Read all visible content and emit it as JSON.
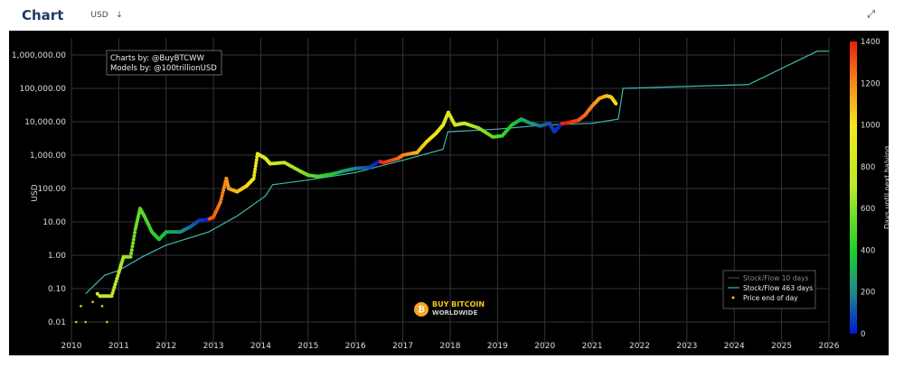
{
  "header": {
    "title": "Chart",
    "currency": "USD",
    "currency_arrow": "↓",
    "expand_icon": "expand-icon"
  },
  "chart_data": {
    "type": "scatter",
    "ylabel": "USD",
    "y_scale": "log",
    "ylim": [
      0.005,
      2000000
    ],
    "xlim": [
      2010,
      2026
    ],
    "y_ticks": [
      {
        "v": 0.01,
        "l": "0.01"
      },
      {
        "v": 0.1,
        "l": "0.10"
      },
      {
        "v": 1,
        "l": "1.00"
      },
      {
        "v": 10,
        "l": "10.00"
      },
      {
        "v": 100,
        "l": "100.00"
      },
      {
        "v": 1000,
        "l": "1,000.00"
      },
      {
        "v": 10000,
        "l": "10,000.00"
      },
      {
        "v": 100000,
        "l": "100,000.00"
      },
      {
        "v": 1000000,
        "l": "1,000,000.00"
      }
    ],
    "x_ticks": [
      "2010",
      "2011",
      "2012",
      "2013",
      "2014",
      "2015",
      "2016",
      "2017",
      "2018",
      "2019",
      "2020",
      "2021",
      "2022",
      "2023",
      "2024",
      "2025",
      "2026"
    ],
    "grid": true,
    "annotation": [
      "Charts by: @BuyBTCWW",
      "Models by: @100trillionUSD"
    ],
    "logo_text": [
      "BUY BITCOIN",
      "WORLDWIDE"
    ],
    "legend": {
      "placement": "bottom-right",
      "entries": [
        "Stock/Flow 10 days",
        "Stock/Flow 463 days",
        "Price end of day"
      ]
    },
    "colorbar": {
      "label": "Days until next halving",
      "range": [
        0,
        1400
      ],
      "ticks": [
        0,
        200,
        400,
        600,
        800,
        1000,
        1200,
        1400
      ]
    },
    "series": [
      {
        "name": "Stock/Flow 463 days",
        "color": "#3fb8b0",
        "points": [
          [
            2010.3,
            0.07
          ],
          [
            2010.7,
            0.25
          ],
          [
            2011,
            0.35
          ],
          [
            2011.5,
            0.9
          ],
          [
            2012,
            2
          ],
          [
            2012.9,
            5
          ],
          [
            2013.5,
            15
          ],
          [
            2014.1,
            60
          ],
          [
            2014.25,
            130
          ],
          [
            2015,
            180
          ],
          [
            2016,
            300
          ],
          [
            2017,
            700
          ],
          [
            2017.85,
            1500
          ],
          [
            2017.95,
            5000
          ],
          [
            2019,
            6000
          ],
          [
            2020,
            8000
          ],
          [
            2021,
            9000
          ],
          [
            2021.55,
            12000
          ],
          [
            2021.65,
            100000
          ],
          [
            2024.3,
            130000
          ],
          [
            2025.75,
            1300000
          ],
          [
            2026,
            1300000
          ]
        ]
      },
      {
        "name": "Price end of day",
        "color": "#f5c518",
        "points": [
          [
            2010.1,
            0.01
          ],
          [
            2010.2,
            0.03
          ],
          [
            2010.3,
            0.01
          ],
          [
            2010.45,
            0.04
          ],
          [
            2010.55,
            0.07
          ],
          [
            2010.65,
            0.03
          ],
          [
            2010.75,
            0.01
          ],
          [
            2010.6,
            0.06
          ],
          [
            2010.85,
            0.06
          ],
          [
            2011,
            0.3
          ],
          [
            2011.1,
            0.9
          ],
          [
            2011.25,
            0.9
          ],
          [
            2011.35,
            6
          ],
          [
            2011.45,
            25
          ],
          [
            2011.55,
            14
          ],
          [
            2011.7,
            5
          ],
          [
            2011.85,
            3
          ],
          [
            2012,
            5
          ],
          [
            2012.3,
            5
          ],
          [
            2012.5,
            7
          ],
          [
            2012.7,
            11
          ],
          [
            2012.9,
            12
          ],
          [
            2013.0,
            14
          ],
          [
            2013.15,
            40
          ],
          [
            2013.27,
            200
          ],
          [
            2013.32,
            100
          ],
          [
            2013.5,
            80
          ],
          [
            2013.7,
            120
          ],
          [
            2013.85,
            200
          ],
          [
            2013.93,
            1100
          ],
          [
            2014.1,
            800
          ],
          [
            2014.2,
            550
          ],
          [
            2014.5,
            600
          ],
          [
            2014.8,
            350
          ],
          [
            2015,
            250
          ],
          [
            2015.2,
            230
          ],
          [
            2015.5,
            270
          ],
          [
            2015.8,
            350
          ],
          [
            2016,
            400
          ],
          [
            2016.3,
            430
          ],
          [
            2016.5,
            650
          ],
          [
            2016.6,
            600
          ],
          [
            2016.9,
            800
          ],
          [
            2017,
            1000
          ],
          [
            2017.3,
            1200
          ],
          [
            2017.5,
            2500
          ],
          [
            2017.7,
            4500
          ],
          [
            2017.85,
            8000
          ],
          [
            2017.96,
            19000
          ],
          [
            2018.1,
            8000
          ],
          [
            2018.3,
            9000
          ],
          [
            2018.6,
            6500
          ],
          [
            2018.9,
            3500
          ],
          [
            2019.1,
            3800
          ],
          [
            2019.3,
            8000
          ],
          [
            2019.5,
            12000
          ],
          [
            2019.7,
            9000
          ],
          [
            2019.9,
            7500
          ],
          [
            2020.1,
            9000
          ],
          [
            2020.2,
            5000
          ],
          [
            2020.36,
            8800
          ],
          [
            2020.5,
            9500
          ],
          [
            2020.7,
            11000
          ],
          [
            2020.85,
            16000
          ],
          [
            2021.0,
            30000
          ],
          [
            2021.15,
            50000
          ],
          [
            2021.3,
            60000
          ],
          [
            2021.4,
            55000
          ],
          [
            2021.5,
            35000
          ]
        ]
      }
    ]
  }
}
